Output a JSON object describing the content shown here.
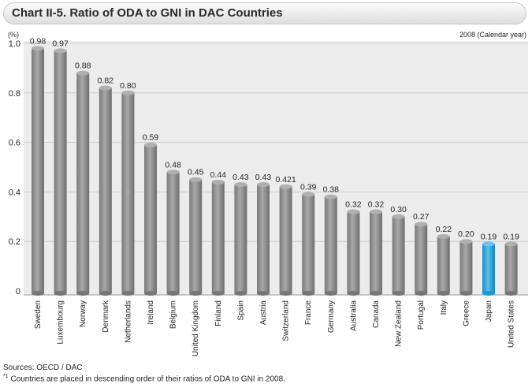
{
  "header": {
    "title": "Chart II-5. Ratio of ODA to GNI in DAC Countries"
  },
  "chart_data": {
    "type": "bar",
    "title": "Chart II-5. Ratio of ODA to GNI in DAC Countries",
    "unit_label": "(%)",
    "period_label": "2008 (Calendar year)",
    "ylim": [
      0,
      1.0
    ],
    "yticks": [
      "0",
      "0.2",
      "0.4",
      "0.6",
      "0.8",
      "1.0"
    ],
    "grid": true,
    "categories": [
      "Sweden",
      "Luxembourg",
      "Norway",
      "Denmark",
      "Netherlands",
      "Ireland",
      "Belgium",
      "United Kingdom",
      "Finland",
      "Spain",
      "Austria",
      "Switzerland",
      "France",
      "Germany",
      "Australia",
      "Canada",
      "New Zealand",
      "Portugal",
      "Italy",
      "Greece",
      "Japan",
      "United States"
    ],
    "values": [
      0.98,
      0.97,
      0.88,
      0.82,
      0.8,
      0.59,
      0.48,
      0.45,
      0.44,
      0.43,
      0.43,
      0.421,
      0.39,
      0.38,
      0.32,
      0.32,
      0.3,
      0.27,
      0.22,
      0.2,
      0.19,
      0.19
    ],
    "value_labels": [
      "0.98",
      "0.97",
      "0.88",
      "0.82",
      "0.80",
      "0.59",
      "0.48",
      "0.45",
      "0.44",
      "0.43",
      "0.43",
      "0.421",
      "0.39",
      "0.38",
      "0.32",
      "0.32",
      "0.30",
      "0.27",
      "0.22",
      "0.20",
      "0.19",
      "0.19"
    ],
    "highlight": "Japan",
    "colors": {
      "bar": "#8c8c8c",
      "bar_light": "#b0b0b0",
      "highlight": "#1e9ad6",
      "highlight_light": "#6cc4ee",
      "plot_bg": "#ececec",
      "grid": "#c4c4c4"
    }
  },
  "footer": {
    "source": "Sources: OECD / DAC",
    "note_marker": "*1",
    "note": "Countries are placed in descending order of their ratios of ODA to GNI in 2008."
  }
}
